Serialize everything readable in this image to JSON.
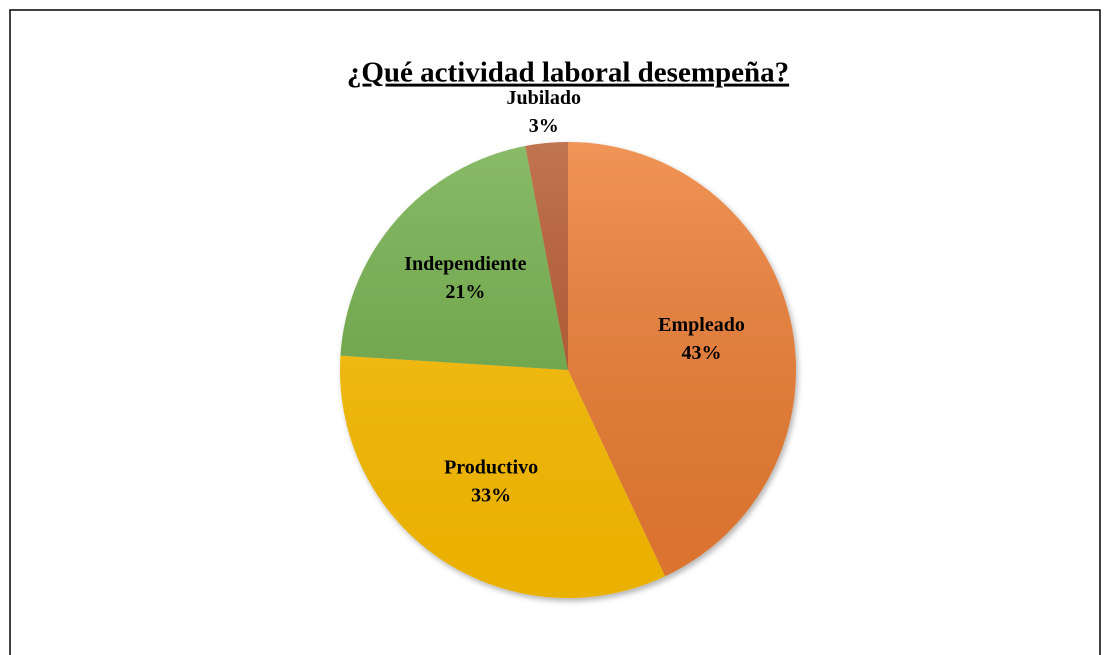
{
  "chart_data": {
    "type": "pie",
    "title": "¿Qué actividad laboral desempeña?",
    "categories": [
      "Empleado",
      "Productivo",
      "Independiente",
      "Jubilado"
    ],
    "values": [
      43,
      33,
      21,
      3
    ],
    "value_labels": [
      "43%",
      "33%",
      "21%",
      "3%"
    ],
    "colors": [
      "#ed7d31",
      "#ffc000",
      "#70ad47",
      "#b4562a"
    ]
  }
}
